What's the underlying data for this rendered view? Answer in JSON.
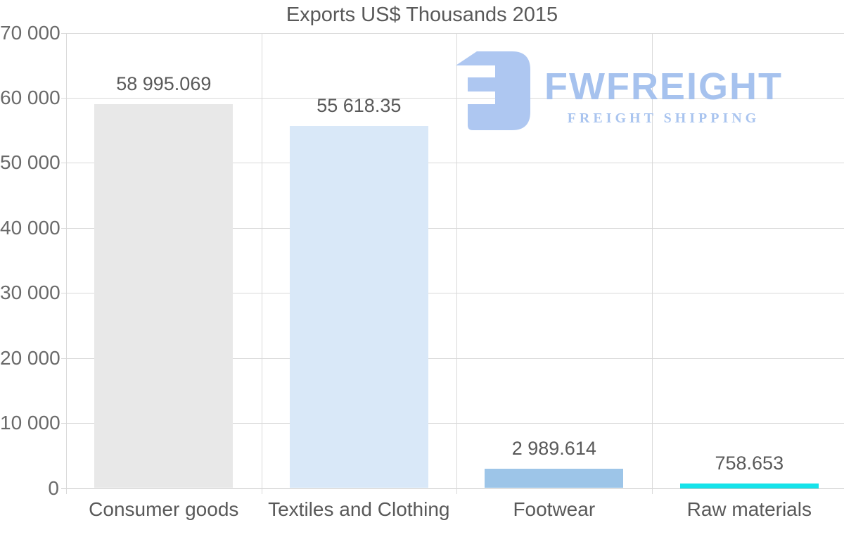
{
  "title": "Exports US$ Thousands 2015",
  "logo": {
    "name": "FWFREIGHT",
    "tagline": "FREIGHT SHIPPING",
    "color": "#a9c4ef"
  },
  "colors": {
    "background": "#ffffff",
    "gridline": "#d9d9d9",
    "axis_line": "#c9c9c9",
    "label_text": "#595959",
    "ytick_text": "#6a6a6a"
  },
  "chart_data": {
    "type": "bar",
    "title": "Exports US$ Thousands 2015",
    "categories": [
      "Consumer goods",
      "Textiles and Clothing",
      "Footwear",
      "Raw materials"
    ],
    "values": [
      58995.069,
      55618.35,
      2989.614,
      758.653
    ],
    "value_labels": [
      "58 995.069",
      "55 618.35",
      "2 989.614",
      "758.653"
    ],
    "bar_colors": [
      "#e8e8e8",
      "#d9e8f8",
      "#9dc5e8",
      "#15e3ea"
    ],
    "xlabel": "",
    "ylabel": "",
    "ylim": [
      0,
      70000
    ],
    "ytick_step": 10000,
    "ytick_labels": [
      "0",
      "10 000",
      "20 000",
      "30 000",
      "40 000",
      "50 000",
      "60 000",
      "70 000"
    ],
    "grid": true,
    "legend_position": "none"
  }
}
